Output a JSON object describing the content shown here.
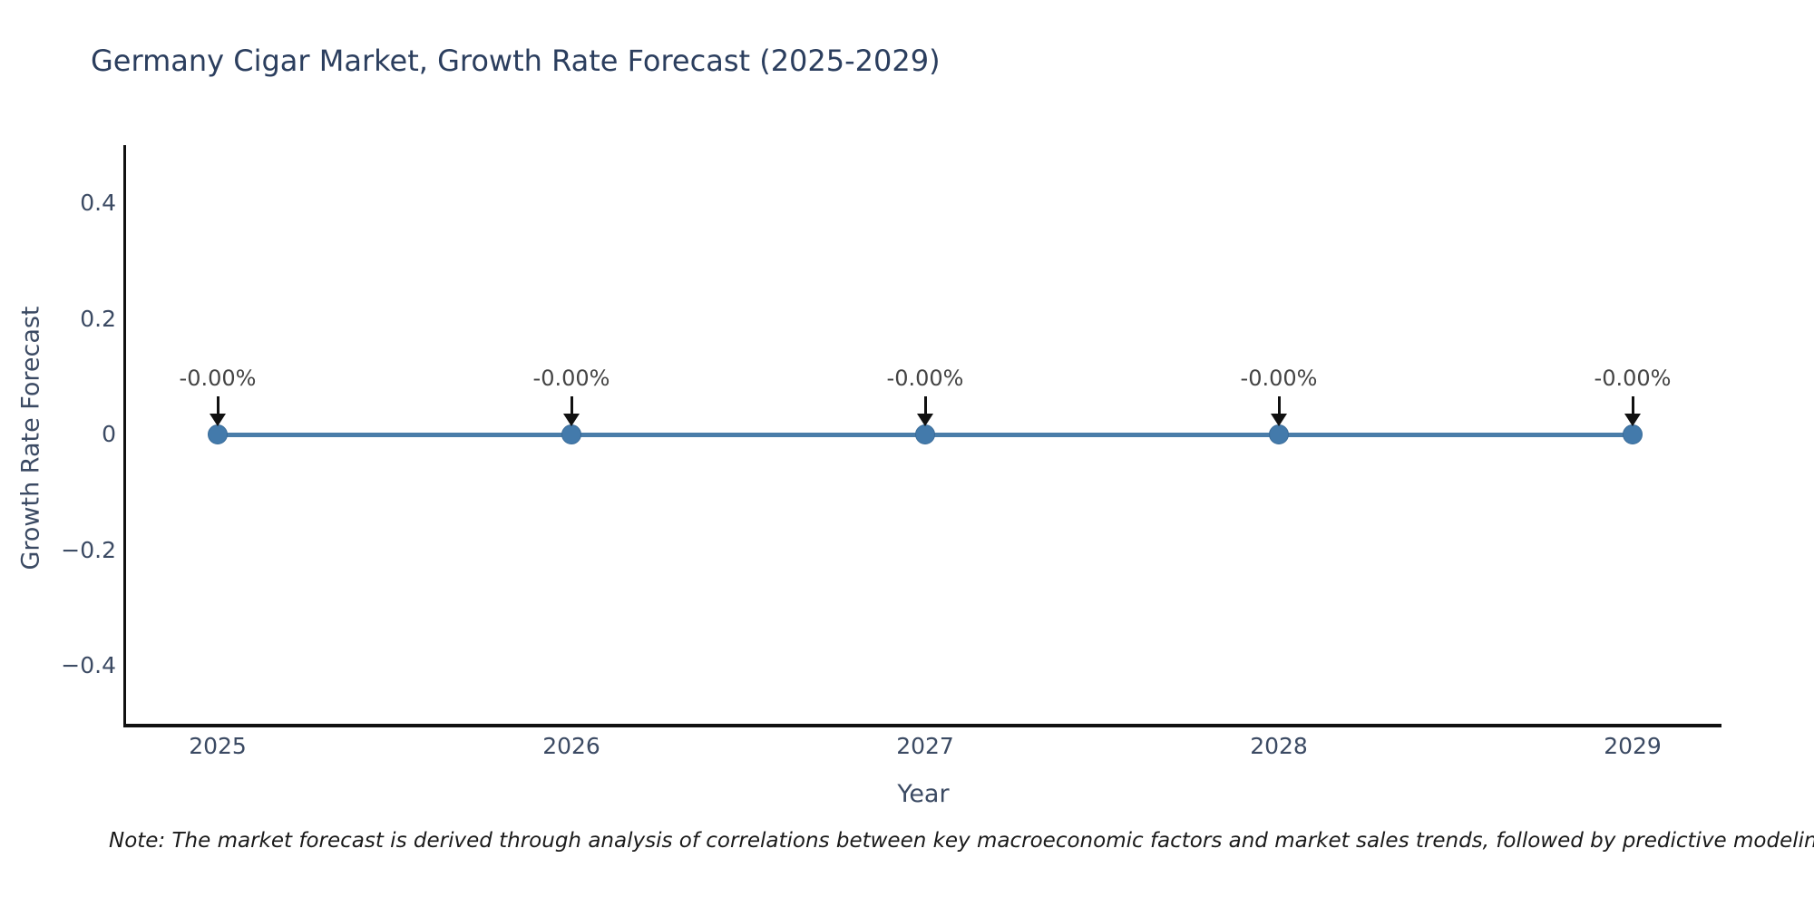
{
  "chart_data": {
    "type": "line",
    "title": "Germany Cigar Market, Growth Rate Forecast (2025-2029)",
    "xlabel": "Year",
    "ylabel": "Growth Rate Forecast",
    "x": [
      2025,
      2026,
      2027,
      2028,
      2029
    ],
    "x_tick_labels": [
      "2025",
      "2026",
      "2027",
      "2028",
      "2029"
    ],
    "values": [
      0,
      0,
      0,
      0,
      0
    ],
    "point_labels": [
      "-0.00%",
      "-0.00%",
      "-0.00%",
      "-0.00%",
      "-0.00%"
    ],
    "y_ticks": [
      {
        "value": 0.4,
        "label": "0.4"
      },
      {
        "value": 0.2,
        "label": "0.2"
      },
      {
        "value": 0,
        "label": "0"
      },
      {
        "value": -0.2,
        "label": "−0.2"
      },
      {
        "value": -0.4,
        "label": "−0.4"
      }
    ],
    "ylim": [
      -0.5,
      0.5
    ],
    "grid": false,
    "legend_position": "none",
    "line_color": "#4a7da9",
    "marker_color": "#437aab",
    "marker_edge_color": "#3a6c99",
    "arrow_color": "#111111",
    "axis_color": "#111111",
    "title_color": "#2b3e5e",
    "note": "Note: The market forecast is derived through analysis of correlations between key macroeconomic factors and market sales trends, followed by predictive modeling to project future sa"
  }
}
